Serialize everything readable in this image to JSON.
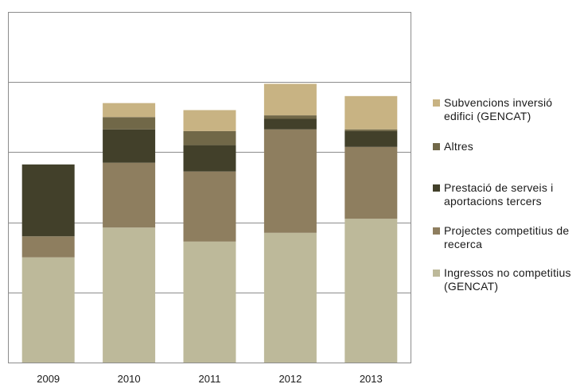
{
  "chart_data": {
    "type": "bar",
    "stacked": true,
    "categories": [
      "2009",
      "2010",
      "2011",
      "2012",
      "2013"
    ],
    "series": [
      {
        "name": "Ingressos no competitius (GENCAT)",
        "color": "#BDB99A",
        "values": [
          3.0,
          3.85,
          3.45,
          3.7,
          4.1
        ]
      },
      {
        "name": "Projectes competitius de recerca",
        "color": "#8E7E5F",
        "values": [
          0.6,
          1.85,
          2.0,
          2.95,
          2.05
        ]
      },
      {
        "name": "Prestació de serveis i aportacions tercers",
        "color": "#42402A",
        "values": [
          2.05,
          0.95,
          0.75,
          0.3,
          0.45
        ]
      },
      {
        "name": "Altres",
        "color": "#716848",
        "values": [
          0,
          0.35,
          0.4,
          0.1,
          0.05
        ]
      },
      {
        "name": "Subvencions inversió edifici (GENCAT)",
        "color": "#C8B383",
        "values": [
          0,
          0.4,
          0.6,
          0.9,
          0.95
        ]
      }
    ],
    "ylim": [
      0,
      10
    ],
    "yticks": [
      0,
      2,
      4,
      6,
      8,
      10
    ],
    "ytick_labels_visible": false,
    "grid": true,
    "legend_placement": "right"
  },
  "legend_order": [
    4,
    3,
    2,
    1,
    0
  ]
}
